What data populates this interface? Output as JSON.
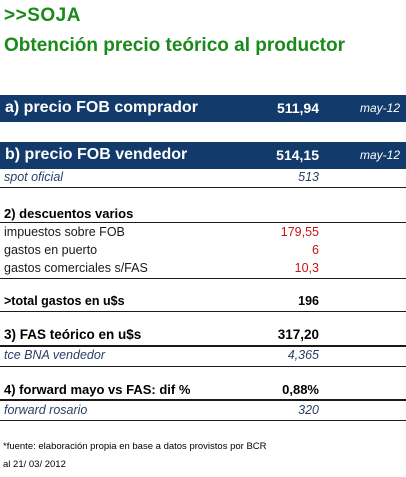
{
  "header": {
    "title": ">>SOJA",
    "subtitle": "Obtención precio teórico al productor"
  },
  "fob_comprador": {
    "label": "a) precio FOB comprador",
    "value": "511,94",
    "date": "may-12"
  },
  "fob_vendedor": {
    "label": "b) precio FOB vendedor",
    "value": "514,15",
    "date": "may-12"
  },
  "spot": {
    "label": "spot oficial",
    "value": "513"
  },
  "descuentos": {
    "title": "2) descuentos varios",
    "items": [
      {
        "label": "impuestos sobre FOB",
        "value": "179,55"
      },
      {
        "label": "gastos en puerto",
        "value": "6"
      },
      {
        "label": "gastos comerciales s/FAS",
        "value": "10,3"
      }
    ]
  },
  "total_gastos": {
    "label": ">total gastos en u$s",
    "value": "196"
  },
  "fas": {
    "label": "3) FAS teórico en u$s",
    "value": "317,20"
  },
  "tce": {
    "label": "tce BNA vendedor",
    "value": "4,365"
  },
  "forward": {
    "label": "4) forward mayo vs FAS: dif %",
    "value": "0,88%"
  },
  "forward_rosario": {
    "label": "forward rosario",
    "value": "320"
  },
  "footer": {
    "source": "*fuente: elaboración propia en base a datos provistos por BCR",
    "date": "al 21/ 03/ 2012"
  },
  "colors": {
    "green_title": "#1a8a1a",
    "band": "#123a6a",
    "red_values": "#c81414"
  }
}
